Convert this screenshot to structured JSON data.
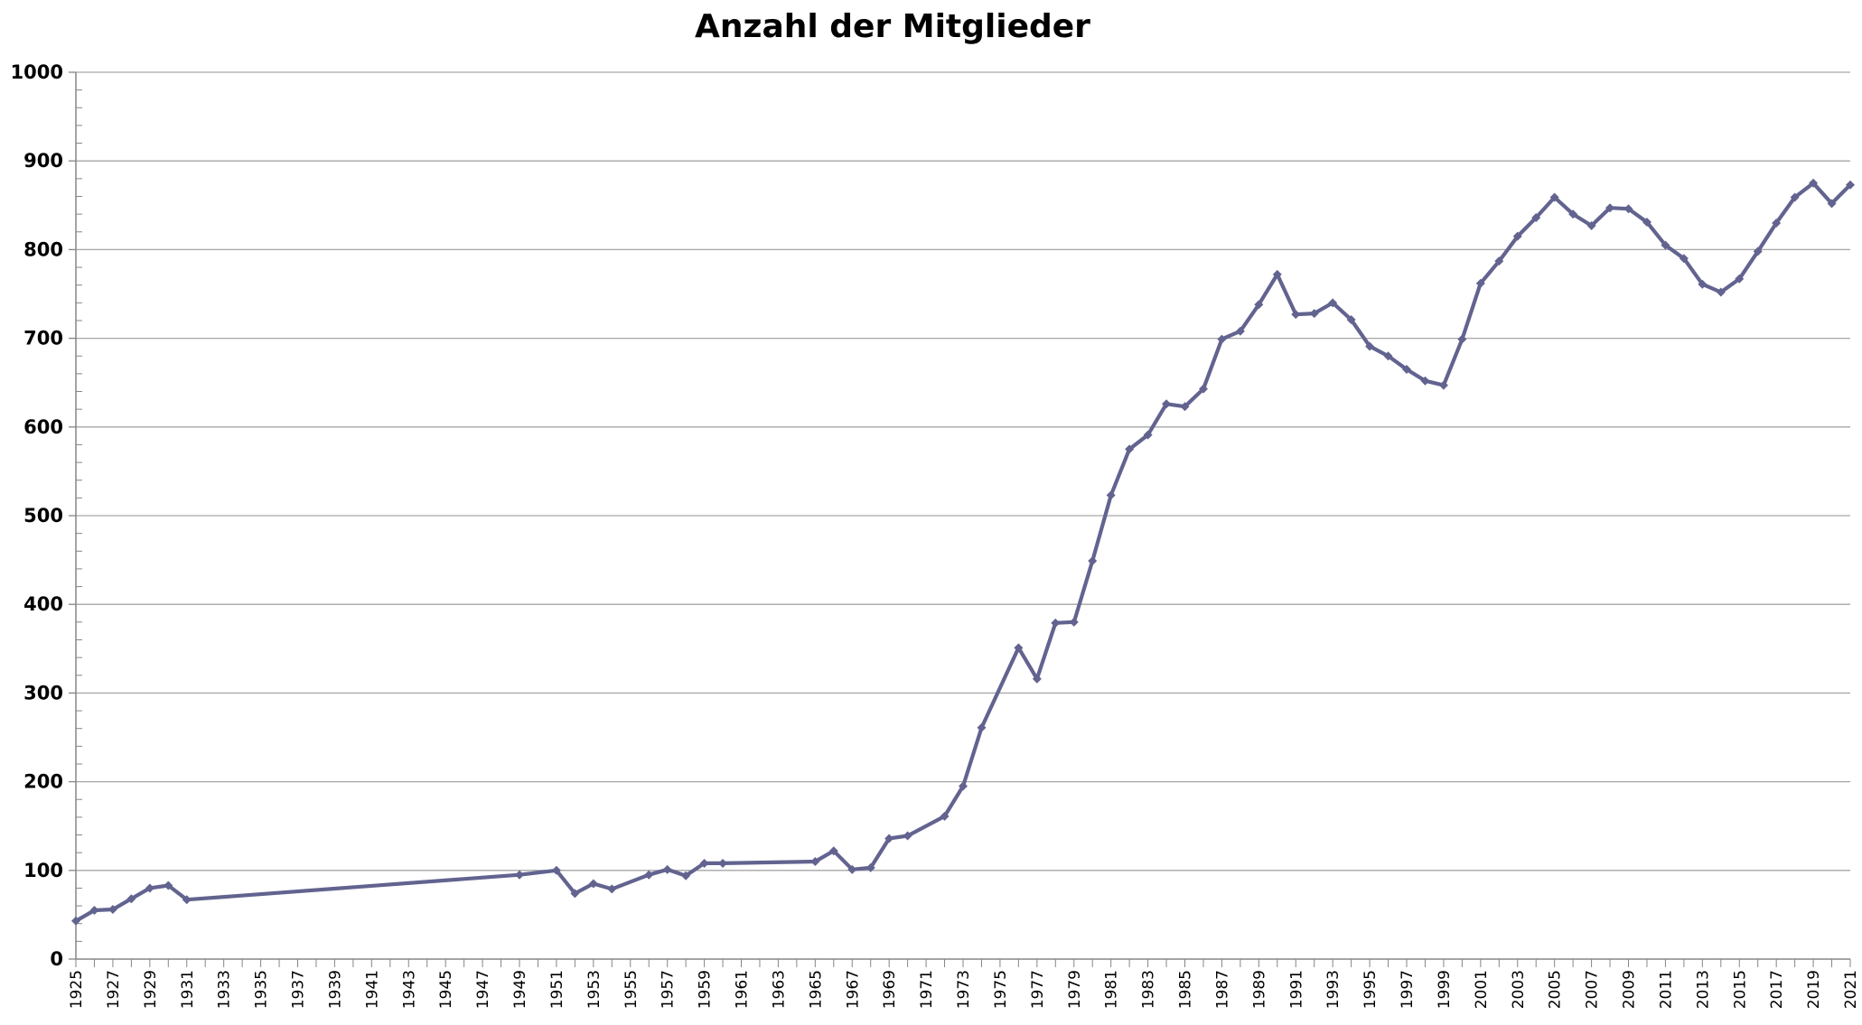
{
  "chart_data": {
    "type": "line",
    "title": "Anzahl der Mitglieder",
    "xlabel": "",
    "ylabel": "",
    "xlim": [
      1925,
      2021
    ],
    "ylim": [
      0,
      1000
    ],
    "y_ticks": [
      0,
      100,
      200,
      300,
      400,
      500,
      600,
      700,
      800,
      900,
      1000
    ],
    "x_tick_labels": [
      "1925",
      "1927",
      "1929",
      "1931",
      "1933",
      "1935",
      "1937",
      "1939",
      "1941",
      "1943",
      "1945",
      "1947",
      "1949",
      "1951",
      "1953",
      "1955",
      "1957",
      "1959",
      "1961",
      "1963",
      "1965",
      "1967",
      "1969",
      "1971",
      "1973",
      "1975",
      "1977",
      "1979",
      "1981",
      "1983",
      "1985",
      "1987",
      "1989",
      "1991",
      "1993",
      "1995",
      "1997",
      "1999",
      "2001",
      "2003",
      "2005",
      "2007",
      "2009",
      "2011",
      "2013",
      "2015",
      "2017",
      "2019",
      "2021"
    ],
    "grid": true,
    "legend": "none",
    "line_color": "#62638f",
    "series": [
      {
        "x": [
          1925,
          1926,
          1927,
          1928,
          1929,
          1930,
          1931,
          1949,
          1951,
          1952,
          1953,
          1954,
          1956,
          1957,
          1958,
          1959,
          1960,
          1965,
          1966,
          1967,
          1968,
          1969,
          1970,
          1972,
          1973,
          1974,
          1976,
          1977,
          1978,
          1979,
          1980,
          1981,
          1982,
          1983,
          1984,
          1985,
          1986,
          1987,
          1988,
          1989,
          1990,
          1991,
          1992,
          1993,
          1994,
          1995,
          1996,
          1997,
          1998,
          1999,
          2000,
          2001,
          2002,
          2003,
          2004,
          2005,
          2006,
          2007,
          2008,
          2009,
          2010,
          2011,
          2012,
          2013,
          2014,
          2015,
          2016,
          2017,
          2018,
          2019,
          2020,
          2021
        ],
        "values": [
          43,
          55,
          56,
          68,
          80,
          83,
          67,
          95,
          100,
          74,
          85,
          79,
          95,
          101,
          94,
          108,
          108,
          110,
          122,
          101,
          103,
          136,
          139,
          161,
          195,
          261,
          351,
          316,
          379,
          380,
          449,
          523,
          575,
          591,
          626,
          623,
          643,
          699,
          708,
          738,
          772,
          727,
          728,
          740,
          721,
          691,
          680,
          665,
          652,
          647,
          699,
          762,
          787,
          815,
          836,
          859,
          840,
          827,
          847,
          846,
          831,
          805,
          790,
          761,
          752,
          767,
          798,
          830,
          859,
          875,
          852,
          873
        ]
      }
    ]
  }
}
